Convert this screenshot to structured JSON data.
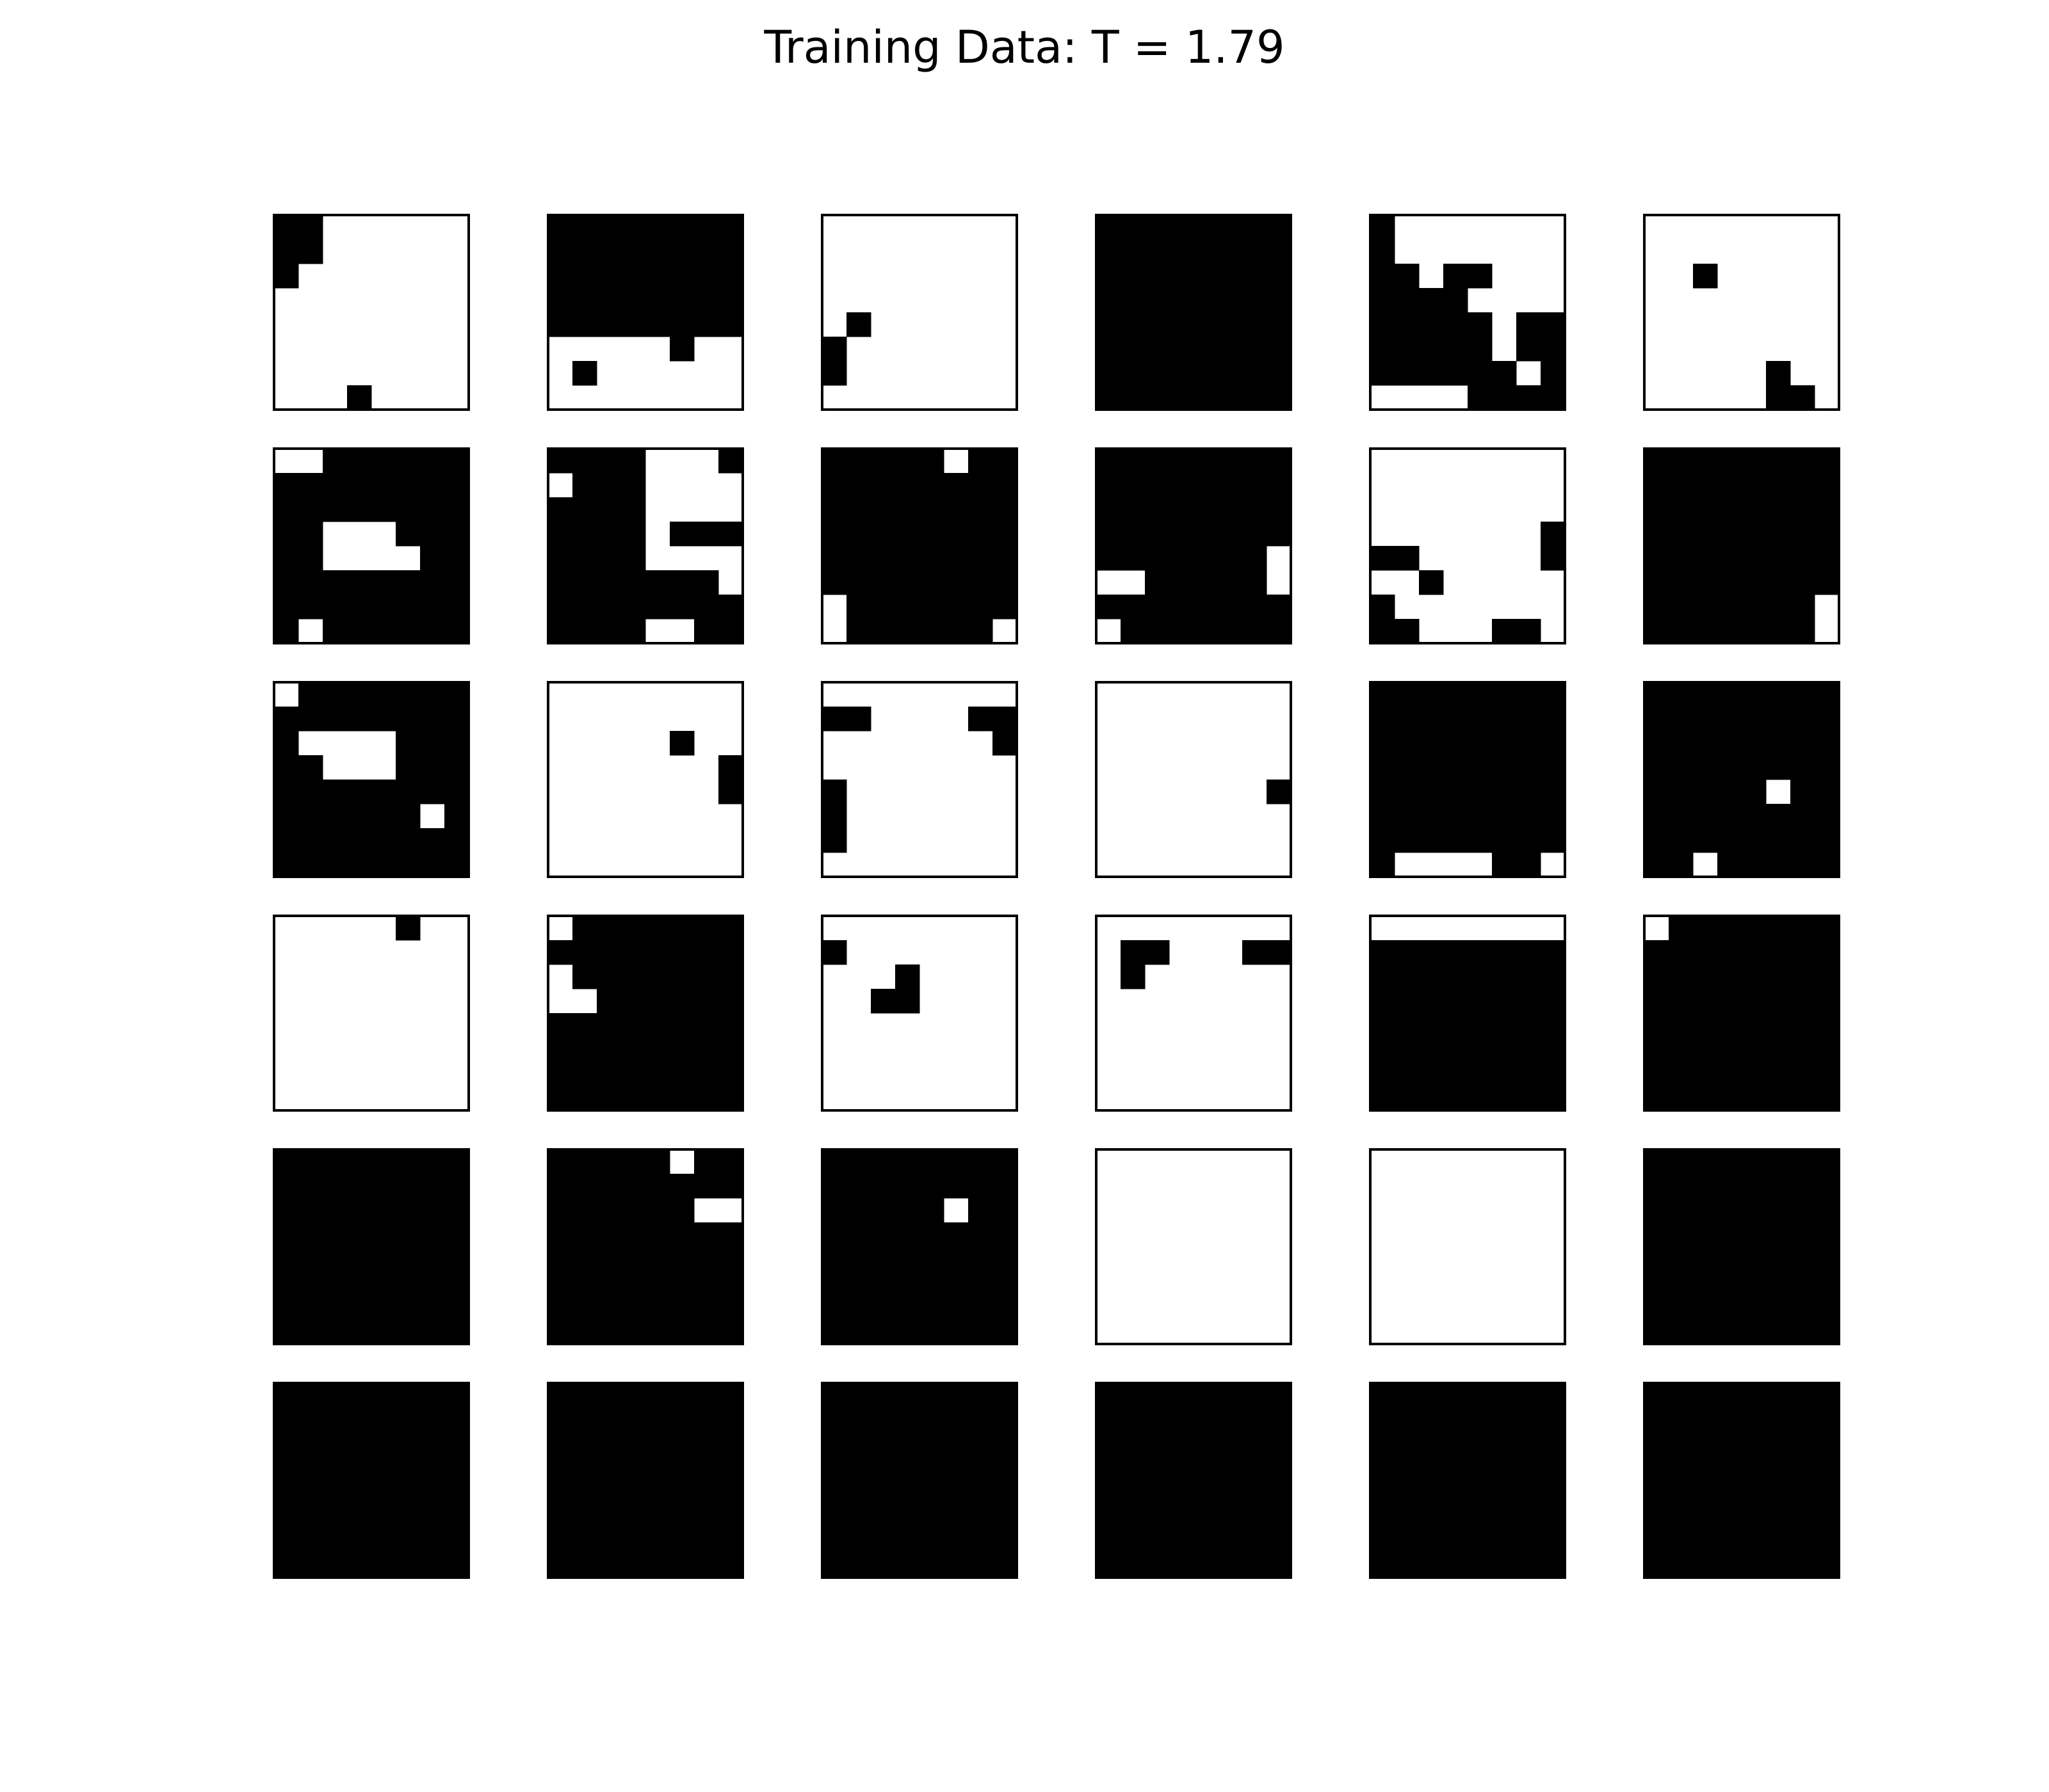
{
  "chart_data": {
    "type": "heatmap",
    "title": "Training Data: T = 1.79",
    "rows": 6,
    "cols": 6,
    "colors": {
      "one": "#000000",
      "zero": "#ffffff",
      "frame": "#000000"
    },
    "grids": [
      [
        "11000000",
        "11000000",
        "10000000",
        "00000000",
        "00000000",
        "00000000",
        "00000000",
        "00010000"
      ],
      [
        "11111111",
        "11111111",
        "11111111",
        "11111111",
        "11111111",
        "00000100",
        "01000000",
        "00000000"
      ],
      [
        "00000000",
        "00000000",
        "00000000",
        "00000000",
        "01000000",
        "10000000",
        "10000000",
        "00000000"
      ],
      [
        "11111111",
        "11111111",
        "11111111",
        "11111111",
        "11111111",
        "11111111",
        "11111111",
        "11111111"
      ],
      [
        "10000000",
        "10000000",
        "11011000",
        "11110000",
        "11111011",
        "11111011",
        "11111101",
        "00001111"
      ],
      [
        "00000000",
        "00000000",
        "00100000",
        "00000000",
        "00000000",
        "00000000",
        "00000100",
        "00000110"
      ],
      [
        "00111111",
        "11111111",
        "11111111",
        "11000111",
        "11000011",
        "11111111",
        "11111111",
        "10111111"
      ],
      [
        "11110001",
        "01110000",
        "11110000",
        "11110111",
        "11110000",
        "11111110",
        "11111111",
        "11110011"
      ],
      [
        "11111011",
        "11111111",
        "11111111",
        "11111111",
        "11111111",
        "11111111",
        "01111111",
        "01111110"
      ],
      [
        "11111111",
        "11111111",
        "11111111",
        "11111111",
        "11111110",
        "00111110",
        "11111111",
        "01111111"
      ],
      [
        "00000000",
        "00000000",
        "00000000",
        "00000001",
        "11000001",
        "00100000",
        "10000000",
        "11000110"
      ],
      [
        "11111111",
        "11111111",
        "11111111",
        "11111111",
        "11111111",
        "11111111",
        "11111110",
        "11111110"
      ],
      [
        "01111111",
        "11111111",
        "10000111",
        "11000111",
        "11111111",
        "11111101",
        "11111111",
        "11111111"
      ],
      [
        "00000000",
        "00000000",
        "00000100",
        "00000001",
        "00000001",
        "00000000",
        "00000000",
        "00000000"
      ],
      [
        "00000000",
        "11000011",
        "00000001",
        "00000000",
        "10000000",
        "10000000",
        "10000000",
        "00000000"
      ],
      [
        "00000000",
        "00000000",
        "00000000",
        "00000000",
        "00000001",
        "00000000",
        "00000000",
        "00000000"
      ],
      [
        "11111111",
        "11111111",
        "11111111",
        "11111111",
        "11111111",
        "11111111",
        "11111111",
        "10000110"
      ],
      [
        "11111111",
        "11111111",
        "11111111",
        "11111111",
        "11111011",
        "11111111",
        "11111111",
        "11011111"
      ],
      [
        "00000100",
        "00000000",
        "00000000",
        "00000000",
        "00000000",
        "00000000",
        "00000000",
        "00000000"
      ],
      [
        "01111111",
        "11111111",
        "01111111",
        "00111111",
        "11111111",
        "11111111",
        "11111111",
        "11111111"
      ],
      [
        "00000000",
        "10000000",
        "00010000",
        "00110000",
        "00000000",
        "00000000",
        "00000000",
        "00000000"
      ],
      [
        "00000000",
        "01100011",
        "01000000",
        "00000000",
        "00000000",
        "00000000",
        "00000000",
        "00000000"
      ],
      [
        "00000000",
        "11111111",
        "11111111",
        "11111111",
        "11111111",
        "11111111",
        "11111111",
        "11111111"
      ],
      [
        "01111111",
        "11111111",
        "11111111",
        "11111111",
        "11111111",
        "11111111",
        "11111111",
        "11111111"
      ],
      [
        "11111111",
        "11111111",
        "11111111",
        "11111111",
        "11111111",
        "11111111",
        "11111111",
        "11111111"
      ],
      [
        "11111011",
        "11111111",
        "11111100",
        "11111111",
        "11111111",
        "11111111",
        "11111111",
        "11111111"
      ],
      [
        "11111111",
        "11111111",
        "11111011",
        "11111111",
        "11111111",
        "11111111",
        "11111111",
        "11111111"
      ],
      [
        "00000000",
        "00000000",
        "00000000",
        "00000000",
        "00000000",
        "00000000",
        "00000000",
        "00000000"
      ],
      [
        "00000000",
        "00000000",
        "00000000",
        "00000000",
        "00000000",
        "00000000",
        "00000000",
        "00000000"
      ],
      [
        "11111111",
        "11111111",
        "11111111",
        "11111111",
        "11111111",
        "11111111",
        "11111111",
        "11111111"
      ],
      [
        "11111111",
        "11111111",
        "11111111",
        "11111111",
        "11111111",
        "11111111",
        "11111111",
        "11111111"
      ],
      [
        "11111111",
        "11111111",
        "11111111",
        "11111111",
        "11111111",
        "11111111",
        "11111111",
        "11111111"
      ],
      [
        "11111111",
        "11111111",
        "11111111",
        "11111111",
        "11111111",
        "11111111",
        "11111111",
        "11111111"
      ],
      [
        "11111111",
        "11111111",
        "11111111",
        "11111111",
        "11111111",
        "11111111",
        "11111111",
        "11111111"
      ],
      [
        "11111111",
        "11111111",
        "11111111",
        "11111111",
        "11111111",
        "11111111",
        "11111111",
        "11111111"
      ],
      [
        "11111111",
        "11111111",
        "11111111",
        "11111111",
        "11111111",
        "11111111",
        "11111111",
        "11111111"
      ]
    ]
  }
}
